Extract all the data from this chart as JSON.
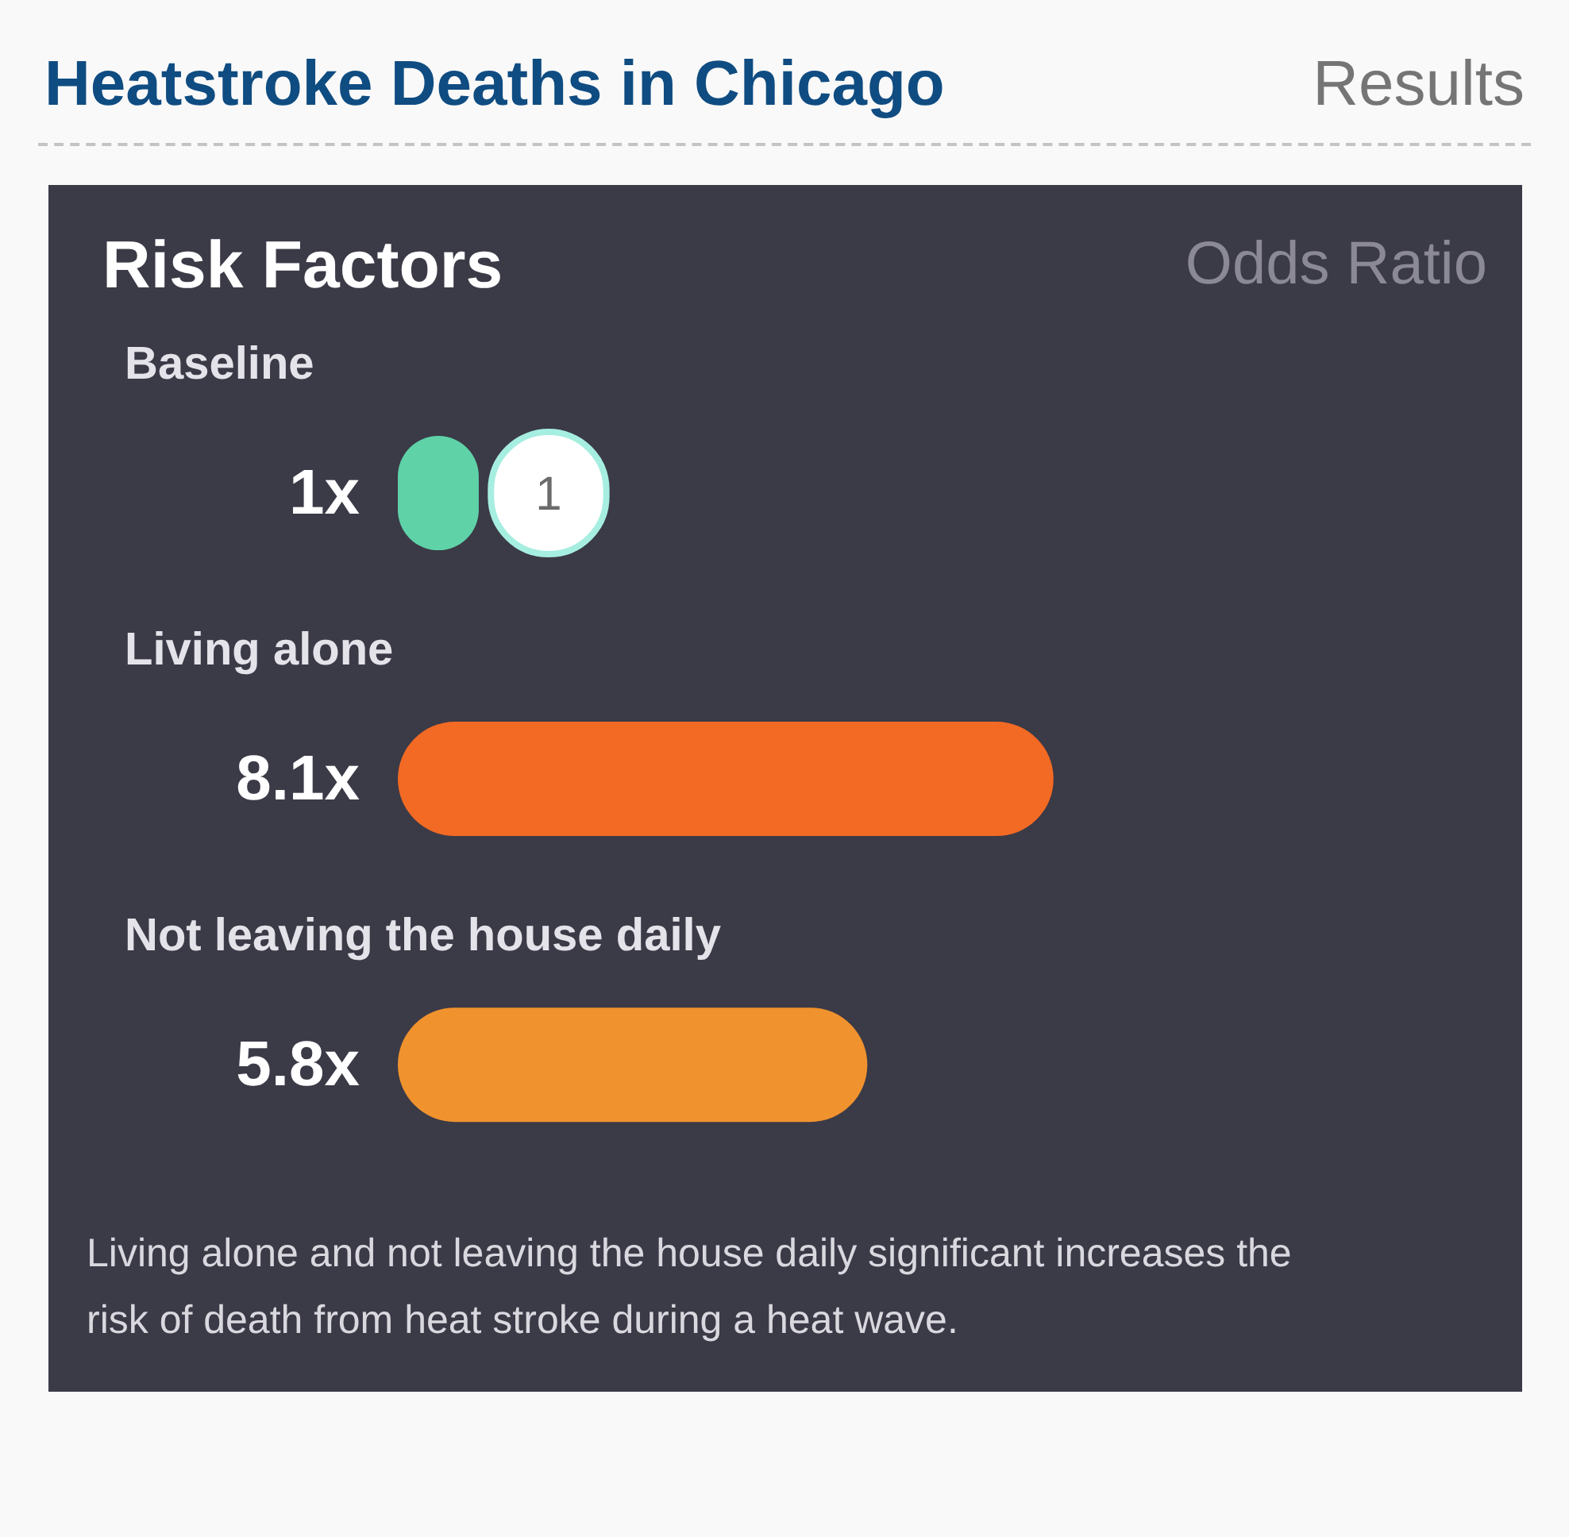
{
  "chart_data": {
    "type": "bar",
    "orientation": "horizontal",
    "title": "Heatstroke Deaths in Chicago",
    "subtitle": "Results",
    "ylabel": "Risk Factors",
    "xlabel": "Odds Ratio",
    "categories": [
      "Baseline",
      "Living alone",
      "Not leaving the house daily"
    ],
    "values": [
      1,
      8.1,
      5.8
    ],
    "colors": [
      "#5fd2a8",
      "#f26a24",
      "#f0922e"
    ],
    "value_labels": [
      "1x",
      "8.1x",
      "5.8x"
    ],
    "annotations": [
      {
        "text": "1",
        "x": 1,
        "y": "Baseline"
      },
      "Living alone and not leaving the house daily significant increases the risk of death from heat stroke during a heat wave."
    ],
    "tick_labels": false
  }
}
